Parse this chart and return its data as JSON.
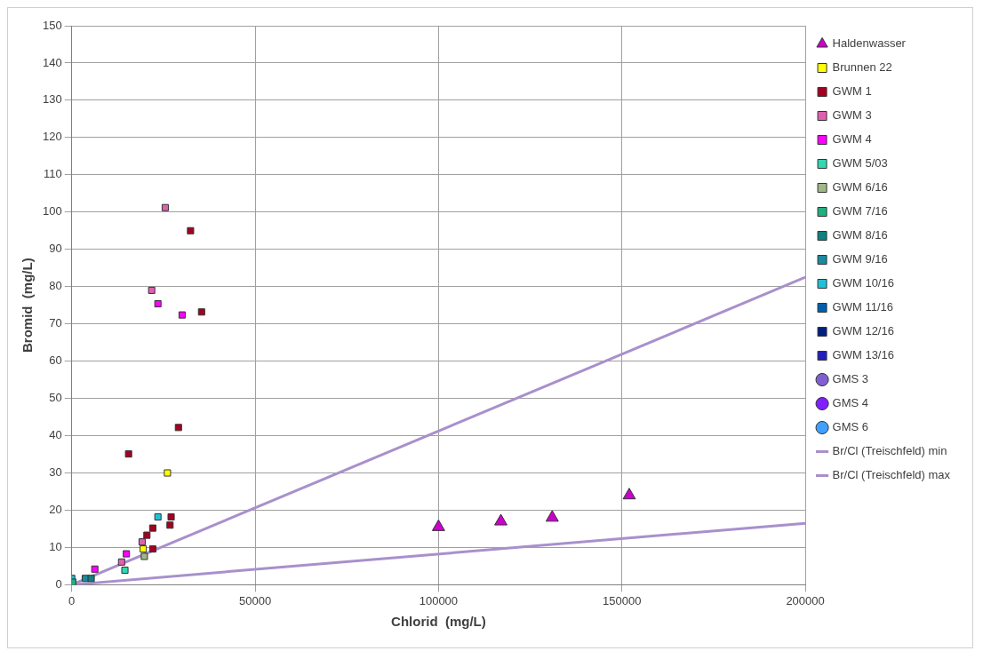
{
  "chart_data": {
    "type": "scatter",
    "xlabel": "Chlorid  (mg/L)",
    "ylabel": "Bromid  (mg/L)",
    "xlim": [
      0,
      200000
    ],
    "xticks": [
      0,
      50000,
      100000,
      150000,
      200000
    ],
    "ylim": [
      0,
      150
    ],
    "yticks": [
      0,
      10,
      20,
      30,
      40,
      50,
      60,
      70,
      80,
      90,
      100,
      110,
      120,
      130,
      140,
      150
    ],
    "grid": true,
    "legend": "right",
    "marker": "square",
    "series": [
      {
        "name": "Haldenwasser",
        "color": "#cc00cc",
        "marker": "triangle",
        "x": [
          100000,
          117000,
          131000,
          152000
        ],
        "values": [
          15.5,
          17,
          18,
          24
        ]
      },
      {
        "name": "Brunnen 22",
        "color": "#ffff00",
        "x": [
          26100,
          19500
        ],
        "values": [
          30,
          9.6
        ]
      },
      {
        "name": "GWM 1",
        "color": "#a50021",
        "x": [
          32400,
          35400,
          29100,
          15500,
          27100,
          26800,
          22100,
          20500,
          22100
        ],
        "values": [
          95,
          73.2,
          42.2,
          35.1,
          18.2,
          16,
          15.2,
          13.3,
          9.6
        ]
      },
      {
        "name": "GWM 3",
        "color": "#e060b0",
        "x": [
          25500,
          21800,
          19200,
          13600
        ],
        "values": [
          101.2,
          79,
          11.5,
          6.1
        ]
      },
      {
        "name": "GWM 4",
        "color": "#ff00ff",
        "x": [
          23500,
          30100,
          14900,
          6300
        ],
        "values": [
          75.4,
          72.4,
          8.3,
          4.2
        ]
      },
      {
        "name": "GWM 5/03",
        "color": "#30d8b0",
        "x": [
          14500
        ],
        "values": [
          3.9
        ]
      },
      {
        "name": "GWM 6/16",
        "color": "#a0b888",
        "x": [
          19800
        ],
        "values": [
          7.6
        ]
      },
      {
        "name": "GWM 7/16",
        "color": "#20b080",
        "x": [
          300
        ],
        "values": [
          0.7
        ]
      },
      {
        "name": "GWM 8/16",
        "color": "#108080",
        "x": [
          5300
        ],
        "values": [
          1.7
        ]
      },
      {
        "name": "GWM 9/16",
        "color": "#1a8aa0",
        "x": [
          3700
        ],
        "values": [
          1.7
        ]
      },
      {
        "name": "GWM 10/16",
        "color": "#20c0d8",
        "x": [
          23500,
          0
        ],
        "values": [
          18.2,
          1.7
        ]
      },
      {
        "name": "GWM 11/16",
        "color": "#0060b0"
      },
      {
        "name": "GWM 12/16",
        "color": "#002080"
      },
      {
        "name": "GWM 13/16",
        "color": "#2020c0"
      },
      {
        "name": "GMS 3",
        "color": "#8060d0",
        "marker": "circle"
      },
      {
        "name": "GMS 4",
        "color": "#8020ff",
        "marker": "circle"
      },
      {
        "name": "GMS 6",
        "color": "#40a0ff",
        "marker": "circle"
      },
      {
        "name": "Br/Cl (Treischfeld) min",
        "type": "line",
        "color": "#a890cc",
        "marker": "none",
        "x": [
          0,
          200000
        ],
        "values": [
          0,
          16.5
        ]
      },
      {
        "name": "Br/Cl (Treischfeld) max",
        "type": "line",
        "color": "#a890cc",
        "marker": "none",
        "x": [
          0,
          200000
        ],
        "values": [
          0,
          82.5
        ]
      }
    ]
  }
}
